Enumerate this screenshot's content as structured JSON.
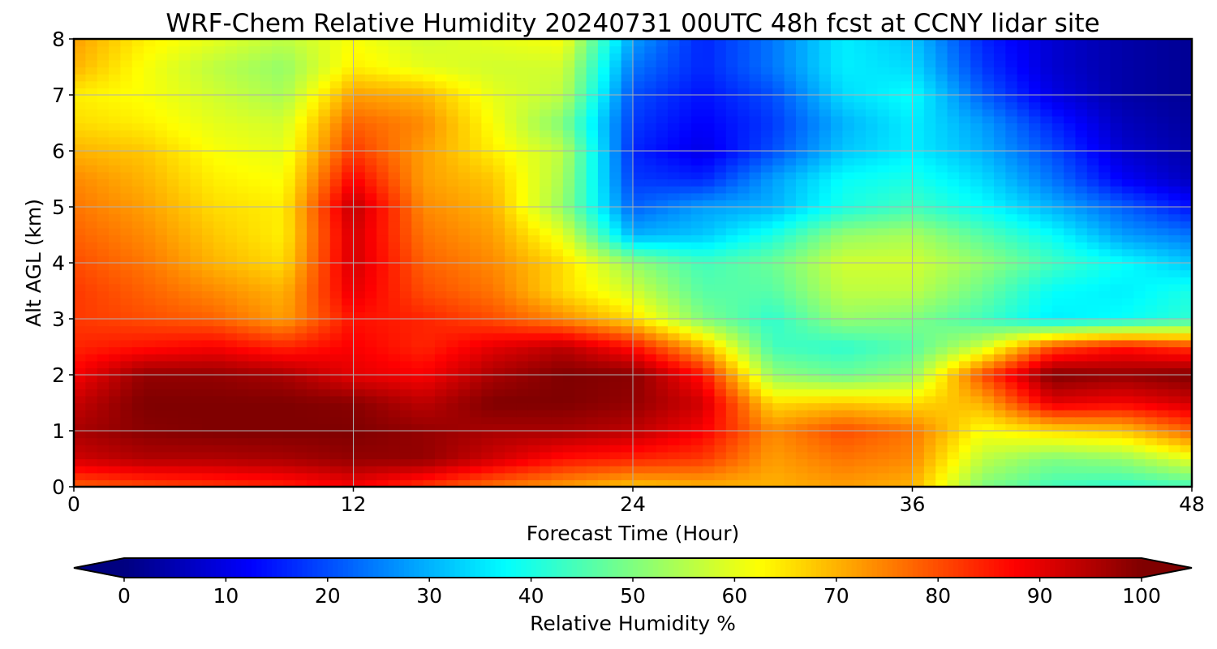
{
  "chart_data": {
    "type": "heatmap",
    "title": "WRF-Chem Relative Humidity 20240731 00UTC 48h fcst at CCNY lidar site",
    "xlabel": "Forecast Time (Hour)",
    "ylabel": "Alt AGL (km)",
    "xlim": [
      0,
      48
    ],
    "ylim": [
      0,
      8
    ],
    "x_ticks": [
      "0",
      "12",
      "24",
      "36",
      "48"
    ],
    "y_ticks": [
      "0",
      "1",
      "2",
      "3",
      "4",
      "5",
      "6",
      "7",
      "8"
    ],
    "grid": true,
    "colormap": "jet",
    "colorbar": {
      "label": "Relative Humidity %",
      "range": [
        0,
        100
      ],
      "ticks": [
        "0",
        "10",
        "20",
        "30",
        "40",
        "50",
        "60",
        "70",
        "80",
        "90",
        "100"
      ],
      "extend": "both",
      "orientation": "horizontal",
      "position": "bottom"
    },
    "x": [
      0,
      3,
      6,
      9,
      12,
      15,
      18,
      21,
      24,
      27,
      30,
      33,
      36,
      39,
      42,
      45,
      48
    ],
    "y": [
      0,
      0.5,
      1,
      1.5,
      2,
      2.5,
      3,
      3.5,
      4,
      4.5,
      5,
      5.5,
      6,
      6.5,
      7,
      7.5,
      8
    ],
    "z": [
      [
        78,
        80,
        82,
        84,
        88,
        82,
        76,
        72,
        68,
        70,
        70,
        72,
        70,
        50,
        44,
        42,
        44
      ],
      [
        92,
        95,
        95,
        96,
        98,
        98,
        92,
        86,
        84,
        82,
        72,
        76,
        74,
        56,
        50,
        52,
        60
      ],
      [
        96,
        99,
        100,
        100,
        100,
        98,
        96,
        96,
        94,
        88,
        74,
        80,
        76,
        62,
        66,
        68,
        78
      ],
      [
        93,
        100,
        100,
        100,
        99,
        94,
        100,
        100,
        98,
        92,
        66,
        68,
        66,
        70,
        90,
        88,
        92
      ],
      [
        88,
        98,
        98,
        96,
        90,
        88,
        96,
        100,
        99,
        86,
        52,
        48,
        52,
        80,
        100,
        98,
        100
      ],
      [
        84,
        86,
        88,
        84,
        88,
        84,
        90,
        94,
        86,
        70,
        44,
        42,
        46,
        58,
        80,
        86,
        82
      ],
      [
        82,
        80,
        78,
        72,
        86,
        84,
        80,
        74,
        66,
        50,
        42,
        52,
        50,
        44,
        36,
        38,
        42
      ],
      [
        82,
        78,
        74,
        70,
        90,
        80,
        76,
        66,
        58,
        46,
        46,
        56,
        56,
        48,
        38,
        36,
        40
      ],
      [
        80,
        76,
        70,
        66,
        92,
        78,
        74,
        66,
        52,
        44,
        48,
        58,
        58,
        52,
        44,
        38,
        32
      ],
      [
        78,
        74,
        68,
        64,
        92,
        76,
        72,
        60,
        30,
        32,
        40,
        52,
        54,
        46,
        38,
        28,
        24
      ],
      [
        76,
        72,
        66,
        64,
        94,
        74,
        70,
        52,
        22,
        28,
        30,
        40,
        44,
        38,
        30,
        22,
        14
      ],
      [
        74,
        70,
        64,
        62,
        88,
        72,
        68,
        54,
        18,
        16,
        28,
        38,
        40,
        34,
        24,
        12,
        6
      ],
      [
        70,
        68,
        62,
        60,
        82,
        72,
        64,
        56,
        16,
        10,
        20,
        32,
        36,
        30,
        20,
        8,
        4
      ],
      [
        66,
        64,
        60,
        58,
        78,
        74,
        62,
        50,
        18,
        12,
        18,
        30,
        36,
        28,
        16,
        6,
        3
      ],
      [
        64,
        62,
        58,
        54,
        72,
        70,
        60,
        56,
        20,
        14,
        20,
        34,
        38,
        22,
        10,
        4,
        2
      ],
      [
        70,
        62,
        56,
        52,
        64,
        60,
        58,
        58,
        24,
        16,
        24,
        36,
        34,
        18,
        8,
        4,
        2
      ],
      [
        72,
        64,
        60,
        56,
        62,
        58,
        60,
        62,
        28,
        16,
        24,
        36,
        32,
        16,
        8,
        4,
        2
      ]
    ]
  }
}
